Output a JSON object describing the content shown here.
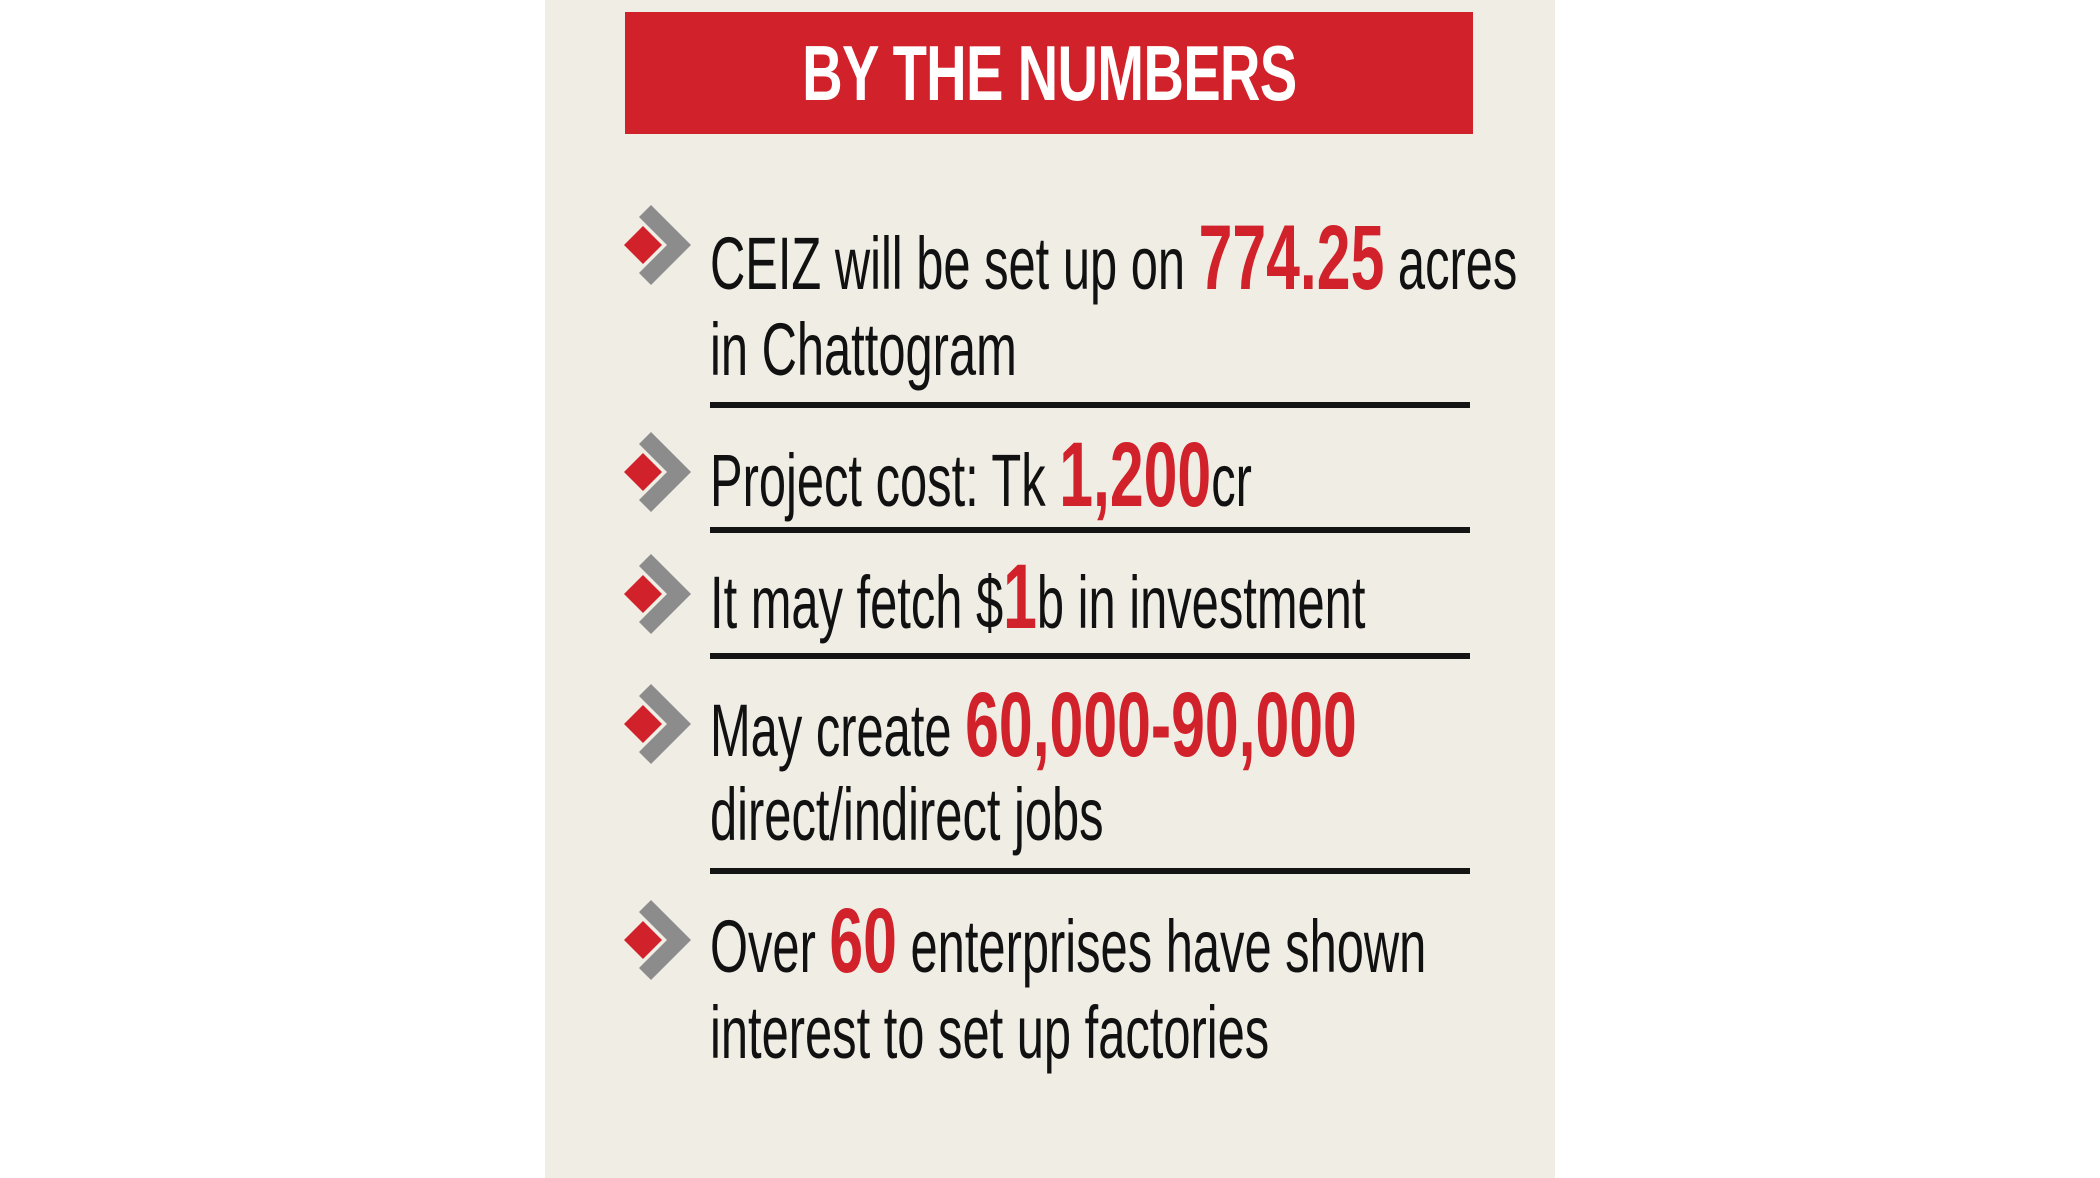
{
  "header": {
    "title": "BY THE NUMBERS"
  },
  "colors": {
    "accent": "#d1212a",
    "panel_bg": "#f0ede5",
    "text": "#111111",
    "chevron": "#8c8c8c"
  },
  "items": [
    {
      "icon": "red-diamond-gray-chevron-icon",
      "line1": {
        "pre": "CEIZ will be set up on ",
        "num": "774.25",
        "post": " acres"
      },
      "line2": "in Chattogram"
    },
    {
      "icon": "red-diamond-gray-chevron-icon",
      "line1": {
        "pre": "Project cost: Tk ",
        "num": "1,200",
        "post": "cr"
      }
    },
    {
      "icon": "red-diamond-gray-chevron-icon",
      "line1": {
        "pre": "It may fetch $",
        "num": "1",
        "post": "b in investment"
      }
    },
    {
      "icon": "red-diamond-gray-chevron-icon",
      "line1": {
        "pre": "May create ",
        "num": "60,000-90,000",
        "post": ""
      },
      "line2": "direct/indirect jobs"
    },
    {
      "icon": "red-diamond-gray-chevron-icon",
      "line1": {
        "pre": "Over ",
        "num": "60",
        "post": " enterprises have shown"
      },
      "line2": "interest to set up factories"
    }
  ]
}
